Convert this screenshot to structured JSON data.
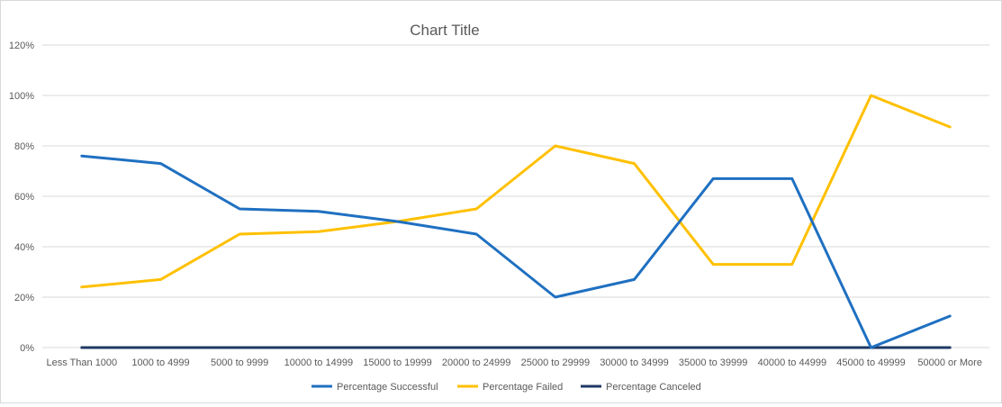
{
  "chart_data": {
    "type": "line",
    "title": "Chart Title",
    "xlabel": "",
    "ylabel": "",
    "ylim": [
      0,
      1.2
    ],
    "y_ticks": [
      "0%",
      "20%",
      "40%",
      "60%",
      "80%",
      "100%",
      "120%"
    ],
    "y_tick_values": [
      0,
      0.2,
      0.4,
      0.6,
      0.8,
      1.0,
      1.2
    ],
    "grid": true,
    "legend_position": "bottom",
    "categories": [
      "Less Than 1000",
      "1000 to 4999",
      "5000 to 9999",
      "10000 to 14999",
      "15000 to 19999",
      "20000 to 24999",
      "25000 to 29999",
      "30000 to 34999",
      "35000 to 39999",
      "40000 to 44999",
      "45000 to 49999",
      "50000 or More"
    ],
    "series": [
      {
        "name": "Percentage Successful",
        "color": "#1f70c1",
        "values": [
          0.76,
          0.73,
          0.55,
          0.54,
          0.5,
          0.45,
          0.2,
          0.27,
          0.67,
          0.67,
          0.0,
          0.125
        ]
      },
      {
        "name": "Percentage Failed",
        "color": "#ffc000",
        "values": [
          0.24,
          0.27,
          0.45,
          0.46,
          0.5,
          0.55,
          0.8,
          0.73,
          0.33,
          0.33,
          1.0,
          0.875
        ]
      },
      {
        "name": "Percentage Canceled",
        "color": "#1f3864",
        "values": [
          0,
          0,
          0,
          0,
          0,
          0,
          0,
          0,
          0,
          0,
          0,
          0
        ]
      }
    ]
  },
  "colors": {
    "gridline": "#d9d9d9",
    "axis_text": "#595959",
    "title_text": "#595959"
  }
}
